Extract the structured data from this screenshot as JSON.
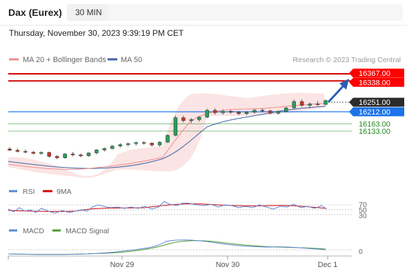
{
  "header": {
    "title": "Dax (Eurex)",
    "timeframe": "30 MIN"
  },
  "datetime": "Thursday, November 30, 2023 9:39:19 PM CET",
  "legend": {
    "items": [
      {
        "label": "MA 20 + Bollinger Bands",
        "color": "#ef8a8a"
      },
      {
        "label": "MA 50",
        "color": "#3b5fa0"
      }
    ],
    "credit": "Research © 2023 Trading Central"
  },
  "chart_data": [
    {
      "type": "candlestick",
      "price_levels": [
        {
          "value": 16367.0,
          "label": "16367.00",
          "kind": "resistance",
          "color": "#d40000"
        },
        {
          "value": 16338.0,
          "label": "16338.00",
          "kind": "resistance",
          "color": "#d40000"
        },
        {
          "value": 16251.0,
          "label": "16251.00",
          "kind": "last-price",
          "color": "#2b2b2b"
        },
        {
          "value": 16212.0,
          "label": "16212.00",
          "kind": "pivot",
          "color": "#1a73e8"
        },
        {
          "value": 16163.0,
          "label": "16163.00",
          "kind": "support",
          "color": "#1e8a1e"
        },
        {
          "value": 16133.0,
          "label": "16133.00",
          "kind": "support",
          "color": "#1e8a1e"
        }
      ],
      "x_labels": [
        "Nov 29",
        "Nov 30",
        "Dec 1"
      ],
      "series": [
        {
          "name": "MA 20 + Bollinger Bands",
          "color": "#ef8a8a"
        },
        {
          "name": "MA 50",
          "color": "#3b5fa0"
        }
      ],
      "ohlc_sample": [
        [
          16060,
          16068,
          16052,
          16055
        ],
        [
          16055,
          16062,
          16046,
          16050
        ],
        [
          16050,
          16058,
          16043,
          16047
        ],
        [
          16047,
          16052,
          16038,
          16042
        ],
        [
          16042,
          16050,
          16036,
          16046
        ],
        [
          16046,
          16049,
          16025,
          16030
        ],
        [
          16030,
          16034,
          16018,
          16024
        ],
        [
          16024,
          16044,
          16020,
          16040
        ],
        [
          16040,
          16048,
          16030,
          16036
        ],
        [
          16036,
          16042,
          16026,
          16032
        ],
        [
          16032,
          16046,
          16028,
          16044
        ],
        [
          16044,
          16060,
          16038,
          16056
        ],
        [
          16056,
          16066,
          16050,
          16062
        ],
        [
          16062,
          16076,
          16058,
          16072
        ],
        [
          16072,
          16084,
          16066,
          16078
        ],
        [
          16078,
          16086,
          16070,
          16082
        ],
        [
          16082,
          16090,
          16074,
          16086
        ],
        [
          16086,
          16092,
          16078,
          16084
        ],
        [
          16084,
          16088,
          16070,
          16076
        ],
        [
          16076,
          16092,
          16070,
          16088
        ],
        [
          16088,
          16120,
          16084,
          16116
        ],
        [
          16116,
          16196,
          16112,
          16188
        ],
        [
          16188,
          16196,
          16168,
          16176
        ],
        [
          16176,
          16186,
          16166,
          16180
        ],
        [
          16180,
          16194,
          16172,
          16190
        ],
        [
          16190,
          16224,
          16186,
          16218
        ],
        [
          16218,
          16226,
          16200,
          16208
        ],
        [
          16208,
          16222,
          16200,
          16214
        ],
        [
          16214,
          16220,
          16204,
          16210
        ],
        [
          16210,
          16216,
          16198,
          16204
        ],
        [
          16204,
          16214,
          16198,
          16210
        ],
        [
          16210,
          16224,
          16204,
          16218
        ],
        [
          16218,
          16226,
          16210,
          16216
        ],
        [
          16216,
          16220,
          16202,
          16206
        ],
        [
          16206,
          16218,
          16200,
          16214
        ],
        [
          16214,
          16232,
          16210,
          16228
        ],
        [
          16228,
          16262,
          16222,
          16254
        ],
        [
          16254,
          16262,
          16232,
          16238
        ],
        [
          16238,
          16250,
          16226,
          16244
        ],
        [
          16244,
          16256,
          16236,
          16242
        ],
        [
          16242,
          16262,
          16238,
          16258
        ]
      ]
    },
    {
      "type": "line",
      "name": "RSI",
      "series": [
        {
          "name": "RSI",
          "color": "#5b84d6"
        },
        {
          "name": "9MA",
          "color": "#d40000"
        }
      ],
      "levels": [
        "70",
        "50",
        "30"
      ]
    },
    {
      "type": "line",
      "name": "MACD",
      "series": [
        {
          "name": "MACD",
          "color": "#5b84d6"
        },
        {
          "name": "MACD Signal",
          "color": "#4c9a2a"
        }
      ],
      "levels": [
        "0"
      ]
    }
  ],
  "indicators": {
    "rsi": {
      "labels": [
        "RSI",
        "9MA"
      ],
      "colors": [
        "#5b84d6",
        "#d40000"
      ]
    },
    "macd": {
      "labels": [
        "MACD",
        "MACD Signal"
      ],
      "colors": [
        "#5b84d6",
        "#4c9a2a"
      ]
    }
  }
}
